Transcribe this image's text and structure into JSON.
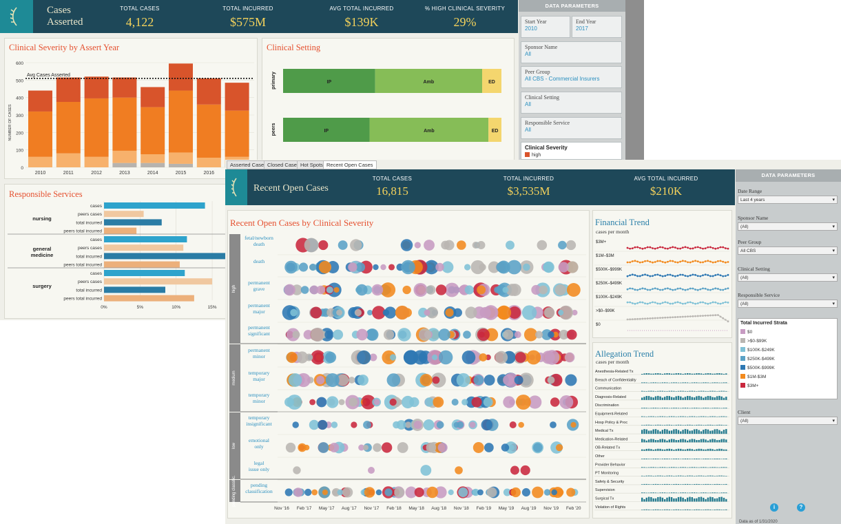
{
  "back": {
    "header": {
      "title_line1": "Cases",
      "title_line2": "Asserted",
      "kpis": [
        {
          "label": "TOTAL CASES",
          "value": "4,122"
        },
        {
          "label": "TOTAL INCURRED",
          "value": "$575M"
        },
        {
          "label": "AVG TOTAL INCURRED",
          "value": "$139K"
        },
        {
          "label": "% HIGH CLINICAL SEVERITY",
          "value": "29%"
        }
      ]
    },
    "severity_chart": {
      "title": "Clinical Severity by Assert Year",
      "ylabel": "NUMBER OF CASES",
      "avg_label": "Avg Cases Asserted",
      "yticks": [
        "600",
        "500",
        "400",
        "300",
        "200",
        "100",
        "0"
      ]
    },
    "clinical_setting": {
      "title": "Clinical Setting",
      "rows": [
        {
          "name": "primary",
          "seg_ip": "IP",
          "seg_amb": "Amb",
          "seg_ed": "ED"
        },
        {
          "name": "peers",
          "seg_ip": "IP",
          "seg_amb": "Amb",
          "seg_ed": "ED"
        }
      ]
    },
    "responsible_services": {
      "title": "Responsible Services",
      "groups": [
        "nursing",
        "general medicine",
        "surgery"
      ],
      "metrics": [
        "cases",
        "peers cases",
        "total incurred",
        "peers total incurred"
      ],
      "xticks": [
        "0%",
        "5%",
        "10%",
        "15%"
      ]
    },
    "params": {
      "header": "DATA PARAMETERS",
      "start_year_label": "Start Year",
      "start_year": "2010",
      "end_year_label": "End Year",
      "end_year": "2017",
      "sponsor_label": "Sponsor Name",
      "sponsor": "All",
      "peer_label": "Peer Group",
      "peer": "All CBS - Commercial Insurers",
      "setting_label": "Clinical Setting",
      "setting": "All",
      "service_label": "Responsible Service",
      "service": "All",
      "severity_label": "Clinical Severity",
      "severity_item": "high"
    }
  },
  "front": {
    "tabs": [
      "Asserted Cases",
      "Closed Cases",
      "Hot Spots",
      "Recent Open Cases"
    ],
    "header": {
      "title": "Recent Open Cases",
      "kpis": [
        {
          "label": "TOTAL CASES",
          "value": "16,815"
        },
        {
          "label": "TOTAL INCURRED",
          "value": "$3,535M"
        },
        {
          "label": "AVG TOTAL INCURRED",
          "value": "$210K"
        }
      ]
    },
    "bubble": {
      "title": "Recent Open Cases by Clinical Severity",
      "groups": [
        "high",
        "medium",
        "low",
        "pending classific."
      ],
      "rows": [
        "fetal/newborn death",
        "death",
        "permanent grave",
        "permanent major",
        "permanent significant",
        "permanent minor",
        "temporary major",
        "temporary minor",
        "temporary insignificant",
        "emotional only",
        "legal issue only",
        "pending classification"
      ],
      "xticks": [
        "Nov '16",
        "Feb '17",
        "May '17",
        "Aug '17",
        "Nov '17",
        "Feb '18",
        "May '18",
        "Aug '18",
        "Nov '18",
        "Feb '19",
        "May '19",
        "Aug '19",
        "Nov '19",
        "Feb '20"
      ]
    },
    "financial": {
      "title": "Financial Trend",
      "subtitle": "cases per month",
      "strata": [
        "$3M+",
        "$1M–$3M",
        "$500K–$999K",
        "$250K–$499K",
        "$100K–$249K",
        ">$0–$99K",
        "$0"
      ]
    },
    "allegation": {
      "title": "Allegation Trend",
      "subtitle": "cases per month",
      "categories": [
        "Anesthesia-Related Tx",
        "Breach of Confidentiality",
        "Communication",
        "Diagnosis-Related",
        "Discrimination",
        "Equipment-Related",
        "Hosp Policy & Proc",
        "Medical Tx",
        "Medication-Related",
        "OB-Related Tx",
        "Other",
        "Provider Behavior",
        "PT Monitoring",
        "Safety & Security",
        "Supervision",
        "Surgical Tx",
        "Violation of Rights"
      ]
    },
    "params": {
      "header": "DATA PARAMETERS",
      "date_label": "Date Range",
      "date": "Last 4 years",
      "sponsor_label": "Sponsor Name",
      "sponsor": "(All)",
      "peer_label": "Peer Group",
      "peer": "All CBS",
      "setting_label": "Clinical Setting",
      "setting": "(All)",
      "service_label": "Responsible Service",
      "service": "(All)",
      "strata_title": "Total Incurred Strata",
      "strata": [
        "$0",
        ">$0-$99K",
        "$100K-$249K",
        "$250K-$499K",
        "$500K-$999K",
        "$1M-$3M",
        "$3M+"
      ],
      "client_label": "Client",
      "client": "(All)",
      "footer": "Data as of 1/31/2020"
    },
    "colors": {
      "strata": [
        "#c79bc2",
        "#b9b6b2",
        "#7fc1d6",
        "#5aa2c6",
        "#2e78b3",
        "#f28a1e",
        "#c9283e"
      ]
    }
  },
  "chart_data": [
    {
      "type": "bar",
      "title": "Clinical Severity by Assert Year",
      "ylabel": "NUMBER OF CASES",
      "ylim": [
        0,
        600
      ],
      "categories": [
        "2010",
        "2011",
        "2012",
        "2013",
        "2014",
        "2015",
        "2016",
        "2017"
      ],
      "series": [
        {
          "name": "gray",
          "values": [
            0,
            0,
            0,
            25,
            25,
            20,
            0,
            20
          ]
        },
        {
          "name": "light",
          "values": [
            60,
            80,
            60,
            70,
            50,
            65,
            55,
            40
          ]
        },
        {
          "name": "orange",
          "values": [
            260,
            295,
            335,
            305,
            270,
            355,
            305,
            265
          ]
        },
        {
          "name": "high",
          "values": [
            120,
            140,
            125,
            115,
            115,
            155,
            150,
            160
          ]
        }
      ],
      "average": 510
    },
    {
      "type": "bar",
      "title": "Clinical Setting",
      "categories": [
        "primary",
        "peers"
      ],
      "series": [
        {
          "name": "IP",
          "values": [
            43,
            40
          ]
        },
        {
          "name": "Amb",
          "values": [
            50,
            55
          ]
        },
        {
          "name": "ED",
          "values": [
            9,
            6
          ]
        }
      ]
    },
    {
      "type": "bar",
      "title": "Responsible Services",
      "categories": [
        "nursing",
        "general medicine",
        "surgery"
      ],
      "series": [
        {
          "name": "cases",
          "values": [
            14,
            11.5,
            11.2
          ]
        },
        {
          "name": "peers cases",
          "values": [
            5.5,
            11,
            15
          ]
        },
        {
          "name": "total incurred",
          "values": [
            8,
            17.5,
            8.5
          ]
        },
        {
          "name": "peers total incurred",
          "values": [
            4.5,
            10.5,
            12.5
          ]
        }
      ],
      "xlim": [
        0,
        17
      ]
    }
  ]
}
